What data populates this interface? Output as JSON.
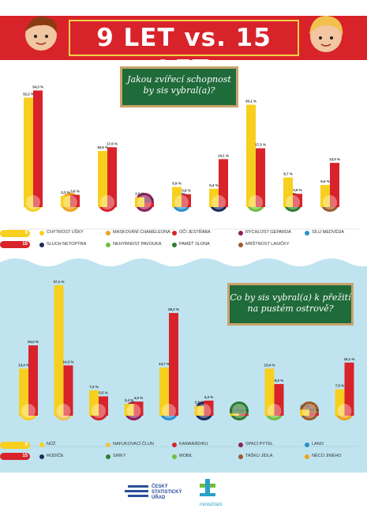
{
  "title": "9 LET vs. 15 LET",
  "colors": {
    "age9": "#f7cf1e",
    "age15": "#d8232a",
    "banner": "#d8232a",
    "board": "#1f6b3a",
    "sea": "#bfe4f0"
  },
  "legend_labels": {
    "age9": "9",
    "age15": "15"
  },
  "charts": [
    {
      "question": "Jakou zvířecí schopnost by sis vybral(a)?",
      "legend": [
        "CHYTROST UŠKY",
        "MASKOVÁNÍ CHAMELEONA",
        "OČI JESTŘÁBA",
        "RYCHLOST GEPARDA",
        "SÍLU MEDVĚDA",
        "SLUCH NETOPÝRA",
        "NEHYBNOST PAVOUKA",
        "PAMĚŤ SLONA",
        "MRŠTNOST LASIČKY"
      ],
      "icons": [
        "fox-icon",
        "bat-icon",
        "chameleon-icon",
        "spider-icon",
        "hawk-icon",
        "elephant-icon",
        "cheetah-icon",
        "weasel-icon",
        "bear-icon"
      ],
      "item_colors": [
        "#f7cf1e",
        "#f0a21b",
        "#d8232a",
        "#8e1f5a",
        "#2e8fc9",
        "#1d2a5c",
        "#6fbf3b",
        "#2e7d32",
        "#9c5a2c"
      ],
      "labels9": [
        "32,2 %",
        "3,3 %",
        "16,5 %",
        "2,9 %",
        "5,9 %",
        "5,4 %",
        "30,1 %",
        "8,7 %",
        "6,5 %"
      ],
      "labels15": [
        "34,3 %",
        "3,6 %",
        "17,6 %",
        "1,3 %",
        "3,8 %",
        "14,1 %",
        "17,3 %",
        "3,9 %",
        "13,0 %"
      ]
    },
    {
      "question": "Co by sis vybral(a) k přežití na pustém ostrově?",
      "legend": [
        "NŮŽ",
        "NAFUKOVACÍ ČLUN",
        "KAMARÁD/KU",
        "SPACÍ PYTEL",
        "LANO",
        "RODIČE",
        "SIRKY",
        "MOBIL",
        "TAŠKU JÍDLA",
        "NĚCO JINÉHO"
      ],
      "icons": [
        "knife-icon",
        "parent-icon",
        "boat-icon",
        "matches-icon",
        "friends-icon",
        "phone-icon",
        "sleeping-bag-icon",
        "food-bag-icon",
        "rope-icon",
        "suitcase-icon"
      ],
      "item_colors": [
        "#f7cf1e",
        "#f2c14e",
        "#d8232a",
        "#8e1f5a",
        "#2e8fc9",
        "#1d2a5c",
        "#2e7d32",
        "#6fbf3b",
        "#9c5a2c",
        "#f0a21b"
      ],
      "labels9": [
        "13,4 %",
        "37,1 %",
        "7,2 %",
        "3,4 %",
        "13,7 %",
        "2,8 %",
        "0,6 %",
        "13,4 %",
        "1,7 %",
        "7,5 %"
      ],
      "labels15": [
        "20,0 %",
        "14,3 %",
        "5,5 %",
        "4,0 %",
        "29,2 %",
        "4,3 %",
        "0,5 %",
        "9,0 %",
        "0,7 %",
        "15,1 %"
      ]
    }
  ],
  "chart_data": [
    {
      "type": "bar",
      "title": "Jakou zvířecí schopnost by sis vybral(a)?",
      "categories": [
        "Chytrost ušky",
        "Sluch netopýra",
        "Maskování chameleona",
        "Nehybnost pavouka",
        "Oči jestřába",
        "Paměť slona",
        "Rychlost geparda",
        "Mrštnost lasičky",
        "Sílu medvěda"
      ],
      "series": [
        {
          "name": "9",
          "values": [
            32.2,
            3.3,
            16.5,
            2.9,
            5.9,
            5.4,
            30.1,
            8.7,
            6.5
          ]
        },
        {
          "name": "15",
          "values": [
            34.3,
            3.6,
            17.6,
            1.3,
            3.8,
            14.1,
            17.3,
            3.9,
            13.0
          ]
        }
      ],
      "ylim": [
        0,
        40
      ]
    },
    {
      "type": "bar",
      "title": "Co by sis vybral(a) k přežití na pustém ostrově?",
      "categories": [
        "Nůž",
        "Rodiče",
        "Nafukovací člun",
        "Sirky",
        "Kamarád/ku",
        "Mobil",
        "Spací pytel",
        "Tašku jídla",
        "Lano",
        "Něco jiného"
      ],
      "series": [
        {
          "name": "9",
          "values": [
            13.4,
            37.1,
            7.2,
            3.4,
            13.7,
            2.8,
            0.6,
            13.4,
            1.7,
            7.5
          ]
        },
        {
          "name": "15",
          "values": [
            20.0,
            14.3,
            5.5,
            4.0,
            29.2,
            4.3,
            0.5,
            9.0,
            0.7,
            15.1
          ]
        }
      ],
      "ylim": [
        0,
        40
      ]
    }
  ],
  "logos": {
    "csu_line1": "ČESKÝ",
    "csu_line2": "STATISTICKÝ",
    "csu_line3": "ÚŘAD",
    "mini": "minisčítání"
  }
}
